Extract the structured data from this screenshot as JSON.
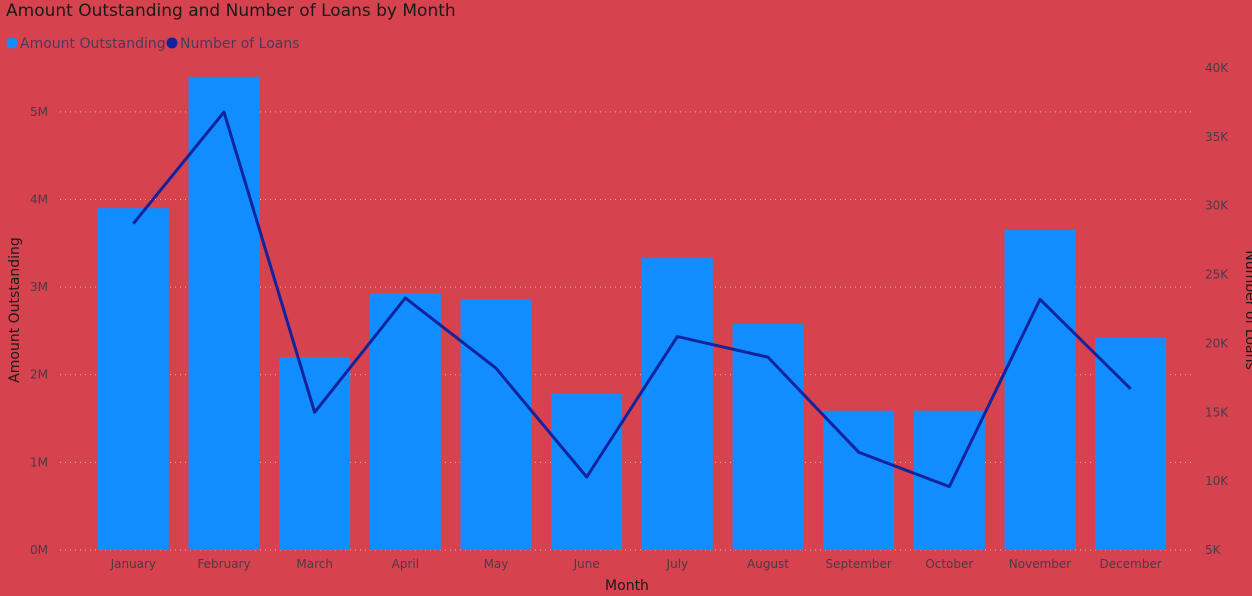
{
  "chart_data": {
    "type": "bar",
    "title": "Amount Outstanding and Number of Loans by Month",
    "xlabel": "Month",
    "ylabel": "Amount Outstanding",
    "y2label": "Number of Loans",
    "categories": [
      "January",
      "February",
      "March",
      "April",
      "May",
      "June",
      "July",
      "August",
      "September",
      "October",
      "November",
      "December"
    ],
    "series": [
      {
        "name": "Amount Outstanding",
        "type": "bar",
        "axis": "left",
        "color": "#118dff",
        "values": [
          3900000,
          5400000,
          2200000,
          2930000,
          2860000,
          1780000,
          3330000,
          2580000,
          1590000,
          1590000,
          3650000,
          2430000
        ]
      },
      {
        "name": "Number of Loans",
        "type": "line",
        "axis": "right",
        "color": "#12239e",
        "values": [
          28700,
          36800,
          15000,
          23300,
          18200,
          10300,
          20500,
          19000,
          12100,
          9600,
          23200,
          16700
        ]
      }
    ],
    "ylim": [
      0,
      5500000
    ],
    "y2lim": [
      5000,
      40000
    ],
    "yticks": [
      "0M",
      "1M",
      "2M",
      "3M",
      "4M",
      "5M"
    ],
    "y2ticks": [
      "5K",
      "10K",
      "15K",
      "20K",
      "25K",
      "30K",
      "35K",
      "40K"
    ],
    "grid": true,
    "legend": "top-left"
  }
}
